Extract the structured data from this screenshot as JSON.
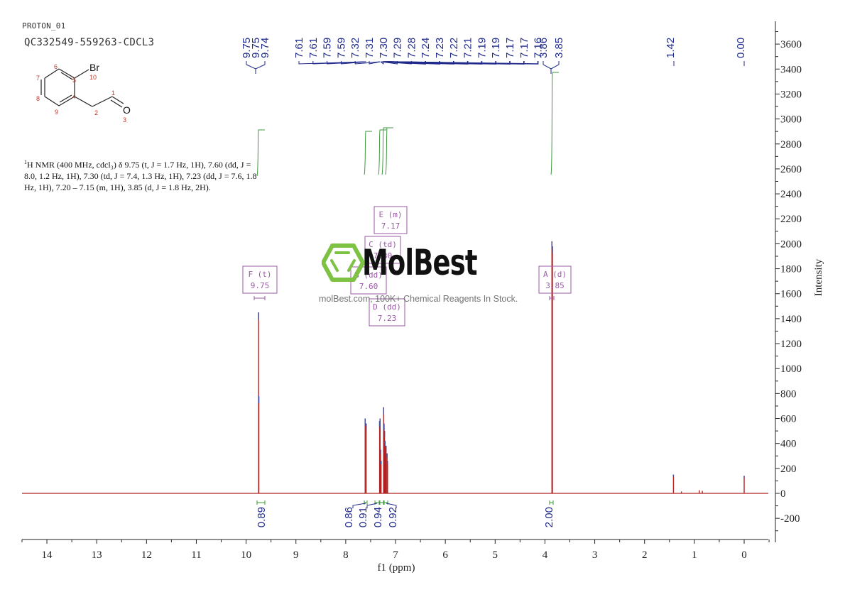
{
  "header": {
    "experiment": "PROTON_01",
    "sample_id": "QC332549-559263-CDCL3"
  },
  "structure": {
    "atoms": [
      {
        "label": "1",
        "role": "C"
      },
      {
        "label": "2",
        "role": "C"
      },
      {
        "label": "3",
        "role": "O",
        "element": "O"
      },
      {
        "label": "4",
        "role": "C"
      },
      {
        "label": "5",
        "role": "C"
      },
      {
        "label": "6",
        "role": "C"
      },
      {
        "label": "7",
        "role": "C"
      },
      {
        "label": "8",
        "role": "C"
      },
      {
        "label": "9",
        "role": "C"
      },
      {
        "label": "10",
        "role": "Br",
        "element": "Br"
      }
    ]
  },
  "description": {
    "nucleus_sup": "1",
    "text": "H NMR (400 MHz, cdcl₃) δ 9.75 (t, J = 1.7 Hz, 1H), 7.60 (dd, J = 8.0, 1.2 Hz, 1H), 7.30 (td, J = 7.4, 1.3 Hz, 1H), 7.23 (dd, J = 7.6, 1.8 Hz, 1H), 7.20 – 7.15 (m, 1H), 3.85 (d, J = 1.8 Hz, 2H)."
  },
  "watermark": {
    "brand": "MolBest",
    "tagline": "molBest.com, 100K+ Chemical Reagents In Stock.",
    "logo_color": "#7dc242"
  },
  "colors": {
    "spectrum": "#b22222",
    "peak_tip": "#3a4fa8",
    "peak_labels": "#1f2a8a",
    "integral": "#3f9a3f",
    "multiplet_box": "#9b59a6",
    "axis": "#222222"
  },
  "chart_data": {
    "type": "line",
    "title": "",
    "xlabel": "f1 (ppm)",
    "ylabel": "Intensity",
    "xlim": [
      14.5,
      -0.5
    ],
    "ylim": [
      -300,
      3800
    ],
    "x_ticks": [
      "14",
      "13",
      "12",
      "11",
      "10",
      "9",
      "8",
      "7",
      "6",
      "5",
      "4",
      "3",
      "2",
      "1",
      "0"
    ],
    "y_ticks": [
      "-200",
      "0",
      "200",
      "400",
      "600",
      "800",
      "1000",
      "1200",
      "1400",
      "1600",
      "1800",
      "2000",
      "2200",
      "2400",
      "2600",
      "2800",
      "3000",
      "3200",
      "3400",
      "3600"
    ],
    "grid": false,
    "peaks": [
      {
        "ppm": 9.75,
        "intensity": 1450
      },
      {
        "ppm": 9.745,
        "intensity": 780
      },
      {
        "ppm": 7.61,
        "intensity": 600
      },
      {
        "ppm": 7.59,
        "intensity": 560
      },
      {
        "ppm": 7.32,
        "intensity": 580
      },
      {
        "ppm": 7.31,
        "intensity": 600
      },
      {
        "ppm": 7.3,
        "intensity": 350
      },
      {
        "ppm": 7.29,
        "intensity": 260
      },
      {
        "ppm": 7.24,
        "intensity": 690
      },
      {
        "ppm": 7.23,
        "intensity": 560
      },
      {
        "ppm": 7.22,
        "intensity": 500
      },
      {
        "ppm": 7.21,
        "intensity": 420
      },
      {
        "ppm": 7.19,
        "intensity": 380
      },
      {
        "ppm": 7.17,
        "intensity": 320
      },
      {
        "ppm": 7.16,
        "intensity": 260
      },
      {
        "ppm": 3.86,
        "intensity": 2020
      },
      {
        "ppm": 3.85,
        "intensity": 1980
      },
      {
        "ppm": 1.42,
        "intensity": 150
      },
      {
        "ppm": 1.26,
        "intensity": 15
      },
      {
        "ppm": 0.9,
        "intensity": 25
      },
      {
        "ppm": 0.84,
        "intensity": 20
      },
      {
        "ppm": 0.0,
        "intensity": 140
      }
    ],
    "peak_labels": {
      "group1": [
        "9.75",
        "9.75",
        "9.74"
      ],
      "group2": [
        "7.61",
        "7.61",
        "7.59",
        "7.59",
        "7.32",
        "7.31",
        "7.30",
        "7.29",
        "7.28",
        "7.24",
        "7.23",
        "7.22",
        "7.21",
        "7.19",
        "7.19",
        "7.17",
        "7.17",
        "7.16",
        "3.86",
        "3.85"
      ],
      "singles": [
        "1.42",
        "0.00"
      ]
    },
    "multiplets": [
      {
        "id": "F",
        "type": "t",
        "shift": "9.75"
      },
      {
        "id": "E",
        "type": "m",
        "shift": "7.17"
      },
      {
        "id": "C",
        "type": "td",
        "shift": "7.30"
      },
      {
        "id": "B",
        "type": "dd",
        "shift": "7.60"
      },
      {
        "id": "D",
        "type": "dd",
        "shift": "7.23"
      },
      {
        "id": "A",
        "type": "d",
        "shift": "3.85"
      }
    ],
    "integrals": [
      {
        "range": [
          9.78,
          9.72
        ],
        "value": "0.89"
      },
      {
        "range": [
          7.63,
          7.57
        ],
        "value": "0.86"
      },
      {
        "range": [
          7.34,
          7.27
        ],
        "value": "0.91"
      },
      {
        "range": [
          7.26,
          7.21
        ],
        "value": "0.94"
      },
      {
        "range": [
          7.2,
          7.14
        ],
        "value": "0.92"
      },
      {
        "range": [
          3.88,
          3.83
        ],
        "value": "2.00"
      }
    ]
  }
}
